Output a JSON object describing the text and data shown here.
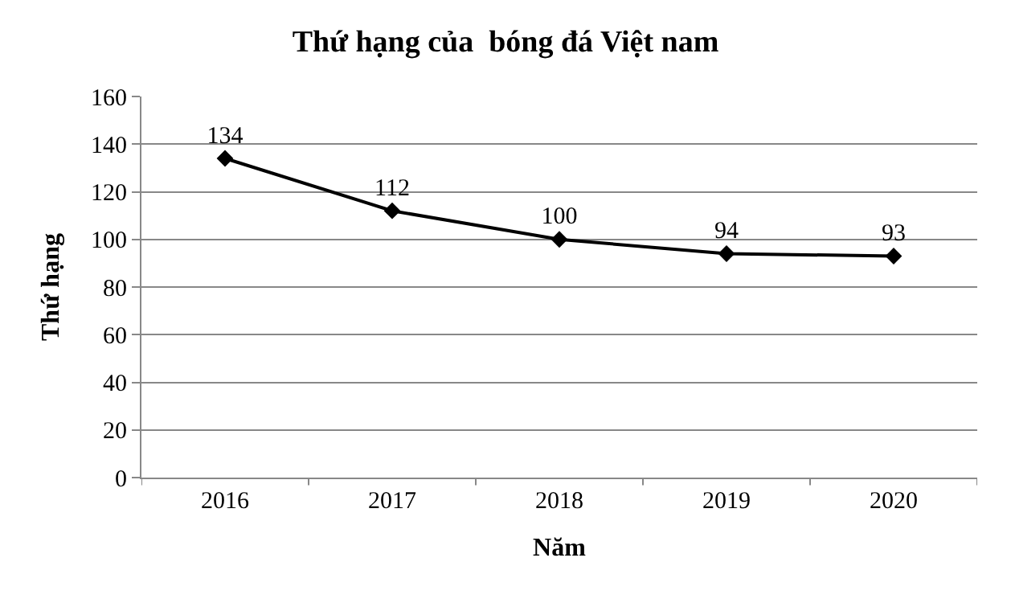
{
  "chart_data": {
    "type": "line",
    "title": "Thứ hạng của  bóng đá Việt nam",
    "xlabel": "Năm",
    "ylabel": "Thứ hạng",
    "categories": [
      "2016",
      "2017",
      "2018",
      "2019",
      "2020"
    ],
    "series": [
      {
        "color": "#000000",
        "values": [
          134,
          112,
          100,
          94,
          93
        ]
      }
    ],
    "ylim": [
      0,
      160
    ],
    "yticks": [
      0,
      20,
      40,
      60,
      80,
      100,
      120,
      140,
      160
    ],
    "grid": "y",
    "marker": "diamond",
    "line_style": "solid",
    "data_labels": true
  }
}
